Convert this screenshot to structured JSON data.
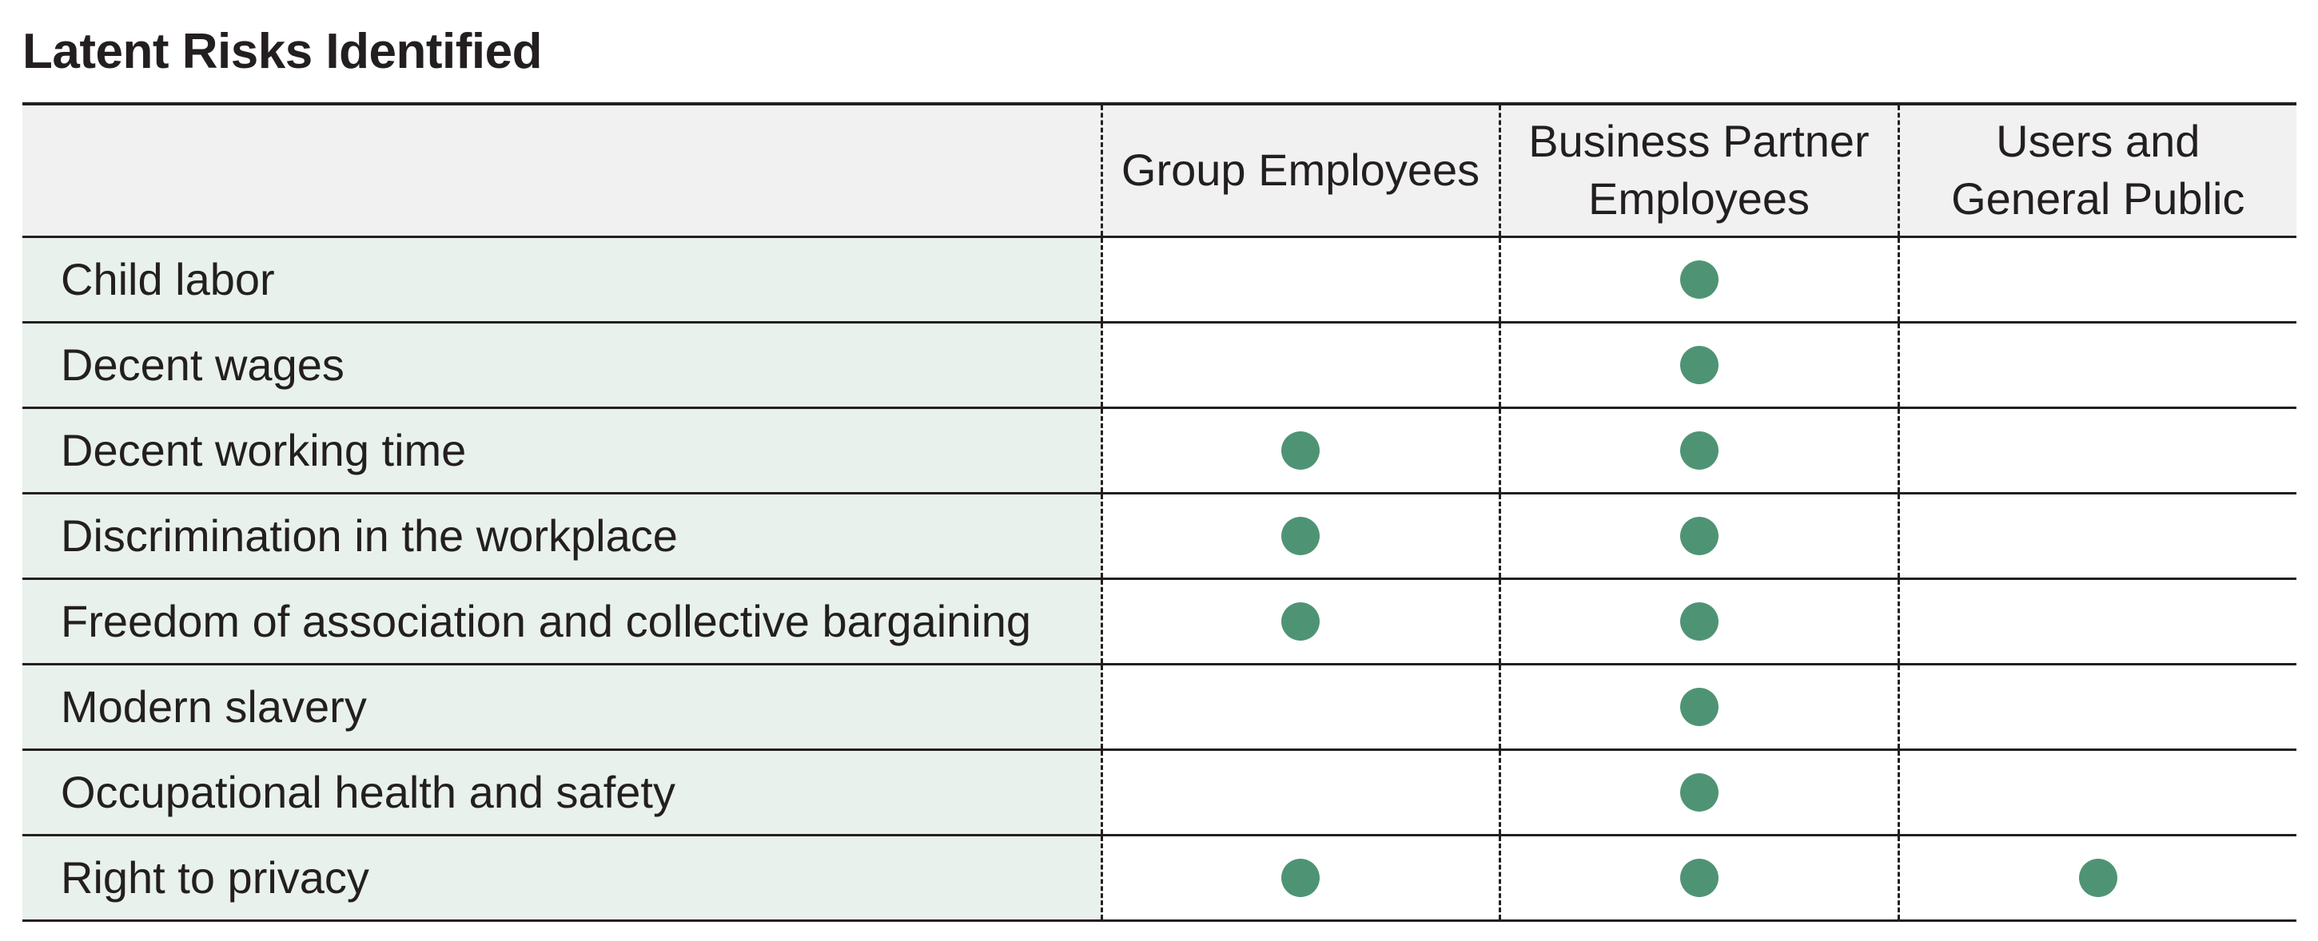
{
  "title": "Latent Risks Identified",
  "columns": [
    "",
    "Group Employees",
    "Business Partner Employees",
    "Users and General Public"
  ],
  "column_lines": [
    [],
    [
      "Group Employees"
    ],
    [
      "Business Partner",
      "Employees"
    ],
    [
      "Users and",
      "General Public"
    ]
  ],
  "marker_color": "#4e9474",
  "rows": [
    {
      "risk": "Child labor",
      "group_employees": false,
      "business_partner_employees": true,
      "users_general_public": false
    },
    {
      "risk": "Decent wages",
      "group_employees": false,
      "business_partner_employees": true,
      "users_general_public": false
    },
    {
      "risk": "Decent working time",
      "group_employees": true,
      "business_partner_employees": true,
      "users_general_public": false
    },
    {
      "risk": "Discrimination in the workplace",
      "group_employees": true,
      "business_partner_employees": true,
      "users_general_public": false
    },
    {
      "risk": "Freedom of association and collective bargaining",
      "group_employees": true,
      "business_partner_employees": true,
      "users_general_public": false
    },
    {
      "risk": "Modern slavery",
      "group_employees": false,
      "business_partner_employees": true,
      "users_general_public": false
    },
    {
      "risk": "Occupational health and safety",
      "group_employees": false,
      "business_partner_employees": true,
      "users_general_public": false
    },
    {
      "risk": "Right to privacy",
      "group_employees": true,
      "business_partner_employees": true,
      "users_general_public": true
    }
  ]
}
